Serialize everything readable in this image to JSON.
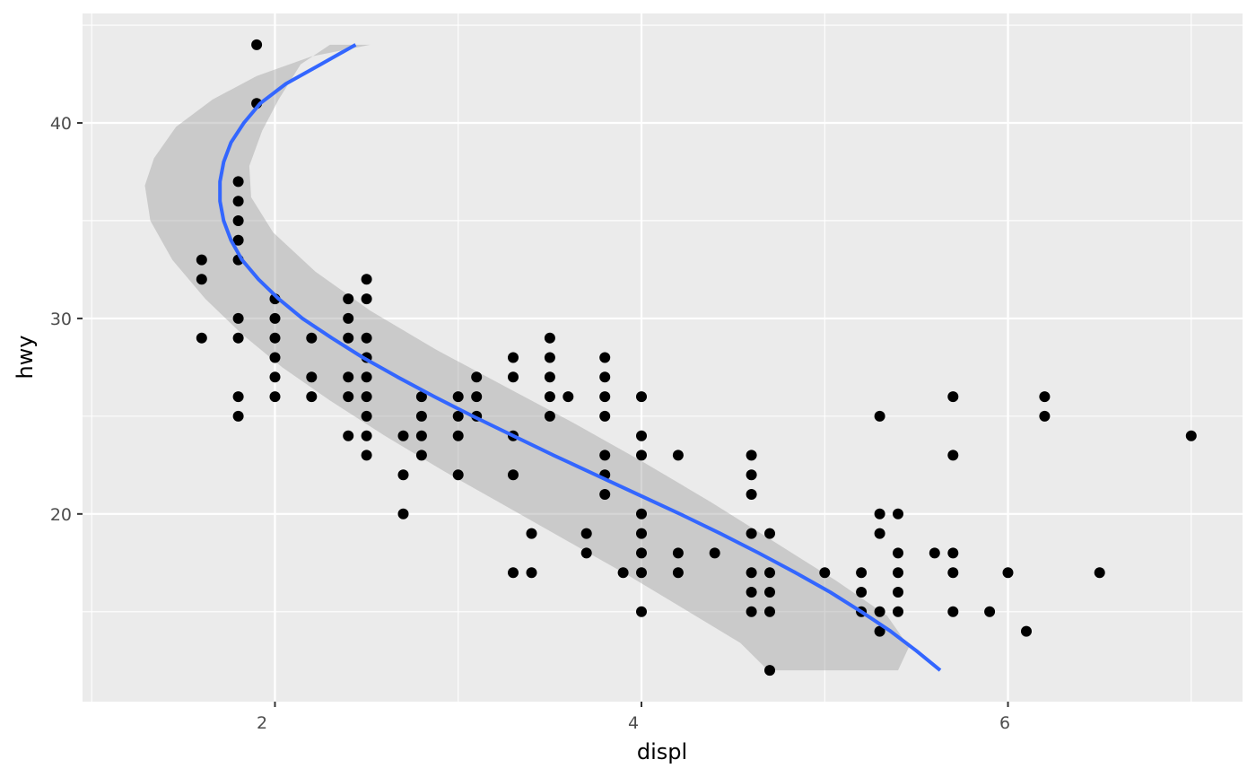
{
  "chart_data": {
    "type": "scatter",
    "xlabel": "displ",
    "ylabel": "hwy",
    "xlim": [
      0.95,
      7.28
    ],
    "ylim": [
      10.4,
      45.6
    ],
    "x_ticks": [
      2,
      4,
      6
    ],
    "y_ticks": [
      20,
      30,
      40
    ],
    "x_tick_labels": [
      "2",
      "4",
      "6"
    ],
    "y_tick_labels": [
      "20",
      "30",
      "40"
    ],
    "grid": true,
    "legend": "none",
    "colors": {
      "panel": "#ebebeb",
      "grid": "#ffffff",
      "points": "#000000",
      "smooth_line": "#3366ff",
      "ribbon": "#999999"
    },
    "points": [
      [
        1.6,
        33
      ],
      [
        1.6,
        32
      ],
      [
        1.6,
        29
      ],
      [
        1.8,
        37
      ],
      [
        1.8,
        36
      ],
      [
        1.8,
        35
      ],
      [
        1.8,
        34
      ],
      [
        1.8,
        33
      ],
      [
        1.8,
        30
      ],
      [
        1.8,
        29
      ],
      [
        1.8,
        26
      ],
      [
        1.8,
        25
      ],
      [
        1.9,
        44
      ],
      [
        1.9,
        41
      ],
      [
        2.0,
        31
      ],
      [
        2.0,
        30
      ],
      [
        2.0,
        29
      ],
      [
        2.0,
        28
      ],
      [
        2.0,
        27
      ],
      [
        2.0,
        26
      ],
      [
        2.2,
        29
      ],
      [
        2.2,
        27
      ],
      [
        2.2,
        26
      ],
      [
        2.4,
        31
      ],
      [
        2.4,
        30
      ],
      [
        2.4,
        29
      ],
      [
        2.4,
        27
      ],
      [
        2.4,
        26
      ],
      [
        2.4,
        24
      ],
      [
        2.5,
        32
      ],
      [
        2.5,
        31
      ],
      [
        2.5,
        29
      ],
      [
        2.5,
        28
      ],
      [
        2.5,
        27
      ],
      [
        2.5,
        26
      ],
      [
        2.5,
        25
      ],
      [
        2.5,
        24
      ],
      [
        2.5,
        23
      ],
      [
        2.7,
        24
      ],
      [
        2.7,
        22
      ],
      [
        2.7,
        20
      ],
      [
        2.8,
        26
      ],
      [
        2.8,
        25
      ],
      [
        2.8,
        24
      ],
      [
        2.8,
        23
      ],
      [
        3.0,
        26
      ],
      [
        3.0,
        25
      ],
      [
        3.0,
        24
      ],
      [
        3.0,
        22
      ],
      [
        3.1,
        27
      ],
      [
        3.1,
        26
      ],
      [
        3.1,
        25
      ],
      [
        3.3,
        28
      ],
      [
        3.3,
        27
      ],
      [
        3.3,
        24
      ],
      [
        3.3,
        22
      ],
      [
        3.3,
        17
      ],
      [
        3.4,
        19
      ],
      [
        3.4,
        17
      ],
      [
        3.5,
        29
      ],
      [
        3.5,
        28
      ],
      [
        3.5,
        27
      ],
      [
        3.5,
        26
      ],
      [
        3.5,
        25
      ],
      [
        3.6,
        26
      ],
      [
        3.7,
        19
      ],
      [
        3.7,
        18
      ],
      [
        3.8,
        28
      ],
      [
        3.8,
        27
      ],
      [
        3.8,
        26
      ],
      [
        3.8,
        25
      ],
      [
        3.8,
        23
      ],
      [
        3.8,
        22
      ],
      [
        3.8,
        21
      ],
      [
        3.9,
        17
      ],
      [
        4.0,
        26
      ],
      [
        4.0,
        24
      ],
      [
        4.0,
        23
      ],
      [
        4.0,
        20
      ],
      [
        4.0,
        19
      ],
      [
        4.0,
        18
      ],
      [
        4.0,
        17
      ],
      [
        4.0,
        15
      ],
      [
        4.2,
        23
      ],
      [
        4.2,
        18
      ],
      [
        4.2,
        17
      ],
      [
        4.4,
        18
      ],
      [
        4.6,
        23
      ],
      [
        4.6,
        22
      ],
      [
        4.6,
        21
      ],
      [
        4.6,
        19
      ],
      [
        4.6,
        17
      ],
      [
        4.6,
        16
      ],
      [
        4.6,
        15
      ],
      [
        4.7,
        19
      ],
      [
        4.7,
        17
      ],
      [
        4.7,
        16
      ],
      [
        4.7,
        15
      ],
      [
        4.7,
        12
      ],
      [
        5.0,
        17
      ],
      [
        5.2,
        17
      ],
      [
        5.2,
        16
      ],
      [
        5.2,
        15
      ],
      [
        5.3,
        25
      ],
      [
        5.3,
        20
      ],
      [
        5.3,
        19
      ],
      [
        5.3,
        15
      ],
      [
        5.3,
        14
      ],
      [
        5.4,
        20
      ],
      [
        5.4,
        18
      ],
      [
        5.4,
        17
      ],
      [
        5.4,
        16
      ],
      [
        5.4,
        15
      ],
      [
        5.6,
        18
      ],
      [
        5.7,
        26
      ],
      [
        5.7,
        23
      ],
      [
        5.7,
        18
      ],
      [
        5.7,
        17
      ],
      [
        5.7,
        15
      ],
      [
        5.9,
        15
      ],
      [
        6.0,
        17
      ],
      [
        6.1,
        14
      ],
      [
        6.2,
        26
      ],
      [
        6.2,
        25
      ],
      [
        6.5,
        17
      ],
      [
        7.0,
        24
      ]
    ],
    "smooth_curve": [
      [
        2.44,
        44
      ],
      [
        2.25,
        43
      ],
      [
        2.06,
        42
      ],
      [
        1.92,
        41
      ],
      [
        1.83,
        40
      ],
      [
        1.76,
        39
      ],
      [
        1.72,
        38
      ],
      [
        1.7,
        37
      ],
      [
        1.7,
        36
      ],
      [
        1.72,
        35
      ],
      [
        1.76,
        34
      ],
      [
        1.82,
        33
      ],
      [
        1.91,
        32
      ],
      [
        2.02,
        31
      ],
      [
        2.15,
        30
      ],
      [
        2.31,
        29
      ],
      [
        2.48,
        28
      ],
      [
        2.67,
        27
      ],
      [
        2.87,
        26
      ],
      [
        3.08,
        25
      ],
      [
        3.3,
        24
      ],
      [
        3.52,
        23
      ],
      [
        3.75,
        22
      ],
      [
        3.98,
        21
      ],
      [
        4.21,
        20
      ],
      [
        4.43,
        19
      ],
      [
        4.64,
        18
      ],
      [
        4.84,
        17
      ],
      [
        5.03,
        16
      ],
      [
        5.2,
        15
      ],
      [
        5.36,
        14
      ],
      [
        5.5,
        13
      ],
      [
        5.63,
        12
      ]
    ],
    "ribbon": {
      "upper": [
        [
          2.52,
          44
        ],
        [
          2.2,
          43.4
        ],
        [
          1.9,
          42.4
        ],
        [
          1.66,
          41.2
        ],
        [
          1.46,
          39.8
        ],
        [
          1.34,
          38.2
        ],
        [
          1.29,
          36.8
        ],
        [
          1.32,
          35
        ],
        [
          1.44,
          33
        ],
        [
          1.62,
          31
        ],
        [
          1.82,
          29.2
        ],
        [
          2.04,
          27.5
        ],
        [
          2.3,
          25.8
        ],
        [
          2.6,
          24
        ],
        [
          2.92,
          22.2
        ],
        [
          3.26,
          20.4
        ],
        [
          3.58,
          18.7
        ],
        [
          3.92,
          16.9
        ],
        [
          4.24,
          15.1
        ],
        [
          4.54,
          13.4
        ],
        [
          4.69,
          12
        ]
      ],
      "lower": [
        [
          5.4,
          12
        ],
        [
          5.46,
          13.2
        ],
        [
          5.34,
          14.8
        ],
        [
          5.06,
          16.6
        ],
        [
          4.72,
          18.6
        ],
        [
          4.38,
          20.6
        ],
        [
          4.02,
          22.6
        ],
        [
          3.64,
          24.6
        ],
        [
          3.26,
          26.5
        ],
        [
          2.88,
          28.4
        ],
        [
          2.52,
          30.4
        ],
        [
          2.22,
          32.4
        ],
        [
          1.99,
          34.4
        ],
        [
          1.87,
          36.2
        ],
        [
          1.86,
          37.8
        ],
        [
          1.93,
          39.6
        ],
        [
          2.02,
          41.2
        ],
        [
          2.14,
          43
        ],
        [
          2.3,
          44
        ]
      ]
    }
  }
}
